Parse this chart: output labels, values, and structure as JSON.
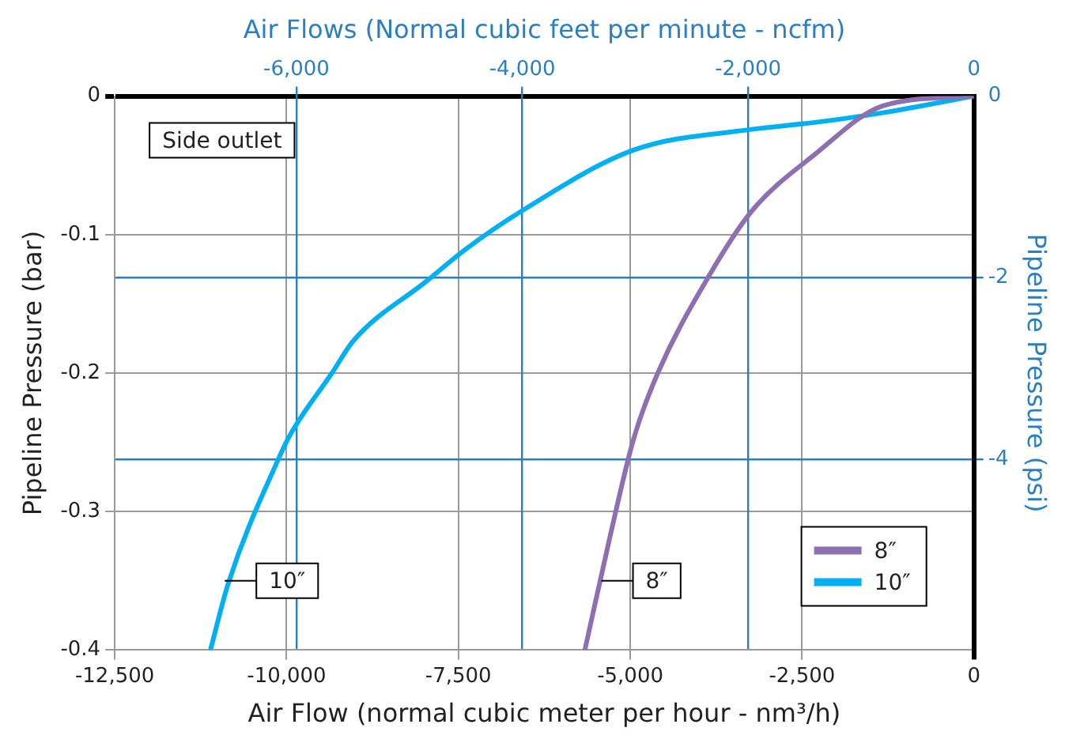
{
  "chart_data": {
    "type": "line",
    "xlabel": "Air Flow (normal cubic meter per hour - nm³/h)",
    "ylabel": "Pipeline Pressure (bar)",
    "y2label": "Pipeline Pressure (psi)",
    "x2label": "Air Flows (Normal cubic feet per minute - ncfm)",
    "xlim": [
      -12500,
      0
    ],
    "xticks": [
      {
        "value": -12500,
        "label": "-12,500"
      },
      {
        "value": -10000,
        "label": "-10,000"
      },
      {
        "value": -7500,
        "label": "-7,500"
      },
      {
        "value": -5000,
        "label": "-5,000"
      },
      {
        "value": -2500,
        "label": "-2,500"
      },
      0
    ],
    "x2lim": [
      -7610,
      0
    ],
    "x2ticks": [
      {
        "value": -6000,
        "label": "-6,000"
      },
      {
        "value": -4000,
        "label": "-4,000"
      },
      {
        "value": -2000,
        "label": "-2,000"
      },
      0
    ],
    "ylim": [
      -0.4,
      0
    ],
    "yticks": [
      -0.4,
      -0.3,
      -0.2,
      -0.1,
      0
    ],
    "y2lim": [
      -6.1,
      0
    ],
    "y2ticks": [
      -4,
      -2,
      0
    ],
    "grid": true,
    "legend": "bottom right",
    "marker": "none",
    "line_style": "solid",
    "series": [
      {
        "name": "8″",
        "color": "#8e6fb0",
        "x": [
          0,
          -1321,
          -2311,
          -3231,
          -3868,
          -4599,
          -4953,
          -5307,
          -5660
        ],
        "values": [
          0,
          -0.007,
          -0.042,
          -0.083,
          -0.131,
          -0.2,
          -0.248,
          -0.321,
          -0.4
        ]
      },
      {
        "name": "10″",
        "color": "#00b0f0",
        "x": [
          0,
          -1321,
          -2311,
          -3231,
          -4953,
          -6580,
          -7406,
          -7948,
          -9033,
          -9340,
          -9929,
          -10118,
          -10849,
          -11108
        ],
        "values": [
          0,
          -0.012,
          -0.019,
          -0.024,
          -0.039,
          -0.083,
          -0.111,
          -0.133,
          -0.177,
          -0.2,
          -0.243,
          -0.262,
          -0.352,
          -0.4
        ]
      }
    ],
    "annotations": [
      "Side outlet",
      {
        "text": "10″",
        "x": -10900,
        "y": -0.35
      },
      {
        "text": "8″",
        "x": -5420,
        "y": -0.35
      }
    ]
  }
}
